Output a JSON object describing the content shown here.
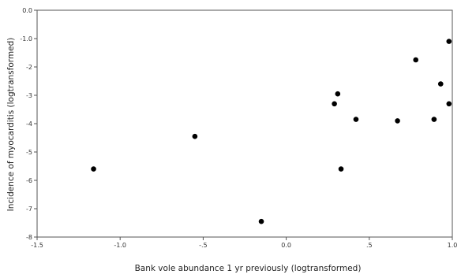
{
  "chart_data": {
    "type": "scatter",
    "title": "",
    "xlabel": "Bank vole abundance 1 yr previously (logtransformed)",
    "ylabel": "Incidence of myocarditis (logtransformed)",
    "xlim": [
      -1.5,
      1.0
    ],
    "ylim": [
      -8.0,
      0.0
    ],
    "xticks": [
      -1.5,
      -1.0,
      -0.5,
      0.0,
      0.5,
      1.0
    ],
    "xtick_labels": [
      "-1.5",
      "-1.0",
      "-.5",
      "0.0",
      ".5",
      "1.0"
    ],
    "yticks": [
      0,
      -1,
      -2,
      -3,
      -4,
      -5,
      -6,
      -7,
      -8
    ],
    "ytick_labels": [
      "0.0",
      "-1.0",
      "-2",
      "-3",
      "-4",
      "-5",
      "-6",
      "-7",
      "-8"
    ],
    "grid": false,
    "legend": "none",
    "points": [
      {
        "x": -1.16,
        "y": -5.6
      },
      {
        "x": -0.55,
        "y": -4.45
      },
      {
        "x": -0.15,
        "y": -7.45
      },
      {
        "x": 0.29,
        "y": -3.3
      },
      {
        "x": 0.31,
        "y": -2.95
      },
      {
        "x": 0.33,
        "y": -5.6
      },
      {
        "x": 0.42,
        "y": -3.85
      },
      {
        "x": 0.67,
        "y": -3.9
      },
      {
        "x": 0.78,
        "y": -1.75
      },
      {
        "x": 0.89,
        "y": -3.85
      },
      {
        "x": 0.93,
        "y": -2.6
      },
      {
        "x": 0.98,
        "y": -3.3
      },
      {
        "x": 0.98,
        "y": -1.1
      }
    ],
    "marker_color": "#000000"
  }
}
